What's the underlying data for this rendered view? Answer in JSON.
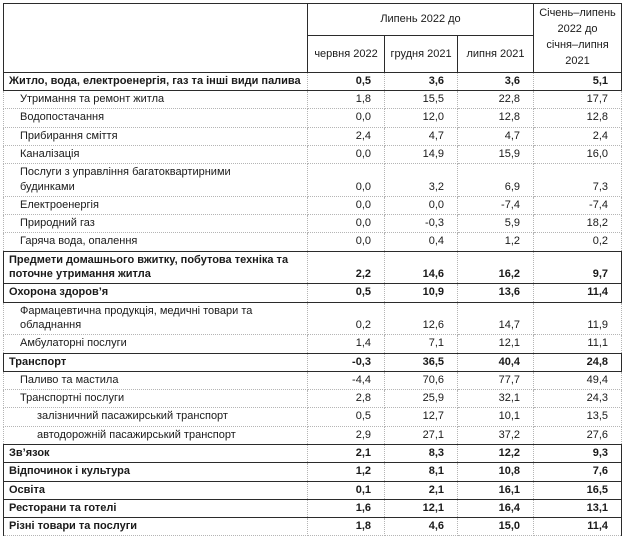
{
  "colors": {
    "border_solid": "#2b2b2b",
    "border_dotted": "#b5b5b5",
    "text": "#1a1a1a"
  },
  "table": {
    "header": {
      "corner_label": "",
      "group_label": "Липень 2022 до",
      "columns": [
        "червня 2022",
        "грудня 2021",
        "липня 2021"
      ],
      "ytd_label": "Січень–липень\n2022 до\nсічня–липня\n2021"
    },
    "rows": [
      {
        "label": "Житло, вода, електроенергія, газ та інші види палива",
        "indent": 0,
        "bold": true,
        "values": [
          "0,5",
          "3,6",
          "3,6",
          "5,1"
        ]
      },
      {
        "label": "Утримання та ремонт житла",
        "indent": 1,
        "bold": false,
        "values": [
          "1,8",
          "15,5",
          "22,8",
          "17,7"
        ]
      },
      {
        "label": "Водопостачання",
        "indent": 1,
        "bold": false,
        "values": [
          "0,0",
          "12,0",
          "12,8",
          "12,8"
        ]
      },
      {
        "label": "Прибирання сміття",
        "indent": 1,
        "bold": false,
        "values": [
          "2,4",
          "4,7",
          "4,7",
          "2,4"
        ]
      },
      {
        "label": "Каналізація",
        "indent": 1,
        "bold": false,
        "values": [
          "0,0",
          "14,9",
          "15,9",
          "16,0"
        ]
      },
      {
        "label": "Послуги з управління багатоквартирними\nбудинками",
        "indent": 1,
        "bold": false,
        "values": [
          "0,0",
          "3,2",
          "6,9",
          "7,3"
        ]
      },
      {
        "label": "Електроенергія",
        "indent": 1,
        "bold": false,
        "values": [
          "0,0",
          "0,0",
          "-7,4",
          "-7,4"
        ]
      },
      {
        "label": "Природний газ",
        "indent": 1,
        "bold": false,
        "values": [
          "0,0",
          "-0,3",
          "5,9",
          "18,2"
        ]
      },
      {
        "label": "Гаряча вода, опалення",
        "indent": 1,
        "bold": false,
        "values": [
          "0,0",
          "0,4",
          "1,2",
          "0,2"
        ]
      },
      {
        "label": "Предмети домашнього вжитку, побутова техніка та\nпоточне утримання житла",
        "indent": 0,
        "bold": true,
        "values": [
          "2,2",
          "14,6",
          "16,2",
          "9,7"
        ]
      },
      {
        "label": "Охорона здоров’я",
        "indent": 0,
        "bold": true,
        "values": [
          "0,5",
          "10,9",
          "13,6",
          "11,4"
        ]
      },
      {
        "label": "Фармацевтична продукція, медичні товари та\nобладнання",
        "indent": 1,
        "bold": false,
        "values": [
          "0,2",
          "12,6",
          "14,7",
          "11,9"
        ]
      },
      {
        "label": "Амбулаторні послуги",
        "indent": 1,
        "bold": false,
        "values": [
          "1,4",
          "7,1",
          "12,1",
          "11,1"
        ]
      },
      {
        "label": "Транспорт",
        "indent": 0,
        "bold": true,
        "values": [
          "-0,3",
          "36,5",
          "40,4",
          "24,8"
        ]
      },
      {
        "label": "Паливо та мастила",
        "indent": 1,
        "bold": false,
        "values": [
          "-4,4",
          "70,6",
          "77,7",
          "49,4"
        ]
      },
      {
        "label": "Транспортні послуги",
        "indent": 1,
        "bold": false,
        "values": [
          "2,8",
          "25,9",
          "32,1",
          "24,3"
        ]
      },
      {
        "label": "залізничний пасажирський транспорт",
        "indent": 2,
        "bold": false,
        "values": [
          "0,5",
          "12,7",
          "10,1",
          "13,5"
        ]
      },
      {
        "label": "автодорожній пасажирський транспорт",
        "indent": 2,
        "bold": false,
        "values": [
          "2,9",
          "27,1",
          "37,2",
          "27,6"
        ]
      },
      {
        "label": "Зв’язок",
        "indent": 0,
        "bold": true,
        "values": [
          "2,1",
          "8,3",
          "12,2",
          "9,3"
        ]
      },
      {
        "label": "Відпочинок і культура",
        "indent": 0,
        "bold": true,
        "values": [
          "1,2",
          "8,1",
          "10,8",
          "7,6"
        ]
      },
      {
        "label": "Освіта",
        "indent": 0,
        "bold": true,
        "values": [
          "0,1",
          "2,1",
          "16,1",
          "16,5"
        ]
      },
      {
        "label": "Ресторани та готелі",
        "indent": 0,
        "bold": true,
        "values": [
          "1,6",
          "12,1",
          "16,4",
          "13,1"
        ]
      },
      {
        "label": "Різні товари та послуги",
        "indent": 0,
        "bold": true,
        "values": [
          "1,8",
          "4,6",
          "15,0",
          "11,4"
        ]
      }
    ]
  },
  "chart_data": {
    "type": "table",
    "title": "",
    "columns": [
      "",
      "Липень 2022 до червня 2022",
      "Липень 2022 до грудня 2021",
      "Липень 2022 до липня 2021",
      "Січень–липень 2022 до січня–липня 2021"
    ],
    "rows": [
      [
        "Житло, вода, електроенергія, газ та інші види палива",
        0.5,
        3.6,
        3.6,
        5.1
      ],
      [
        "Утримання та ремонт житла",
        1.8,
        15.5,
        22.8,
        17.7
      ],
      [
        "Водопостачання",
        0.0,
        12.0,
        12.8,
        12.8
      ],
      [
        "Прибирання сміття",
        2.4,
        4.7,
        4.7,
        2.4
      ],
      [
        "Каналізація",
        0.0,
        14.9,
        15.9,
        16.0
      ],
      [
        "Послуги з управління багатоквартирними будинками",
        0.0,
        3.2,
        6.9,
        7.3
      ],
      [
        "Електроенергія",
        0.0,
        0.0,
        -7.4,
        -7.4
      ],
      [
        "Природний газ",
        0.0,
        -0.3,
        5.9,
        18.2
      ],
      [
        "Гаряча вода, опалення",
        0.0,
        0.4,
        1.2,
        0.2
      ],
      [
        "Предмети домашнього вжитку, побутова техніка та поточне утримання житла",
        2.2,
        14.6,
        16.2,
        9.7
      ],
      [
        "Охорона здоров’я",
        0.5,
        10.9,
        13.6,
        11.4
      ],
      [
        "Фармацевтична продукція, медичні товари та обладнання",
        0.2,
        12.6,
        14.7,
        11.9
      ],
      [
        "Амбулаторні послуги",
        1.4,
        7.1,
        12.1,
        11.1
      ],
      [
        "Транспорт",
        -0.3,
        36.5,
        40.4,
        24.8
      ],
      [
        "Паливо та мастила",
        -4.4,
        70.6,
        77.7,
        49.4
      ],
      [
        "Транспортні послуги",
        2.8,
        25.9,
        32.1,
        24.3
      ],
      [
        "залізничний пасажирський транспорт",
        0.5,
        12.7,
        10.1,
        13.5
      ],
      [
        "автодорожній пасажирський транспорт",
        2.9,
        27.1,
        37.2,
        27.6
      ],
      [
        "Зв’язок",
        2.1,
        8.3,
        12.2,
        9.3
      ],
      [
        "Відпочинок і культура",
        1.2,
        8.1,
        10.8,
        7.6
      ],
      [
        "Освіта",
        0.1,
        2.1,
        16.1,
        16.5
      ],
      [
        "Ресторани та готелі",
        1.6,
        12.1,
        16.4,
        13.1
      ],
      [
        "Різні товари та послуги",
        1.8,
        4.6,
        15.0,
        11.4
      ]
    ]
  }
}
